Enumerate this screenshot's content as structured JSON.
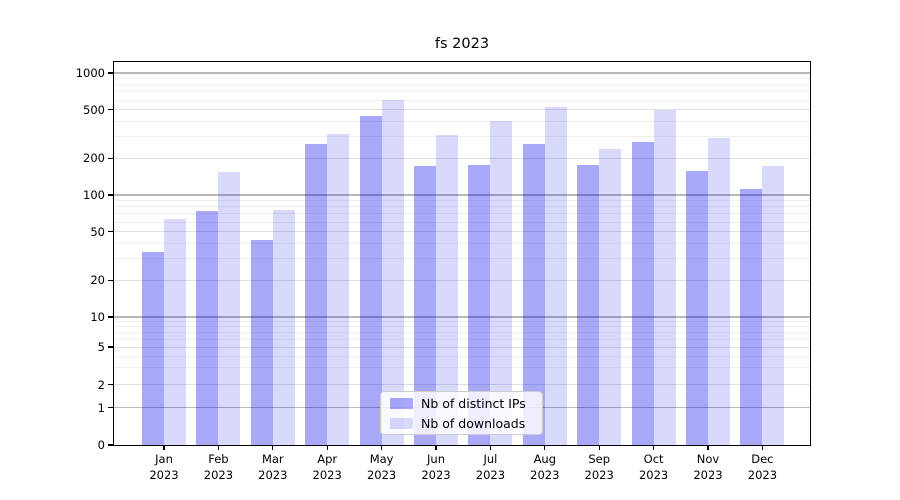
{
  "figure": {
    "background": "#ffffff"
  },
  "chart_data": {
    "type": "bar",
    "title": "fs 2023",
    "categories": [
      {
        "month": "Jan",
        "year": "2023"
      },
      {
        "month": "Feb",
        "year": "2023"
      },
      {
        "month": "Mar",
        "year": "2023"
      },
      {
        "month": "Apr",
        "year": "2023"
      },
      {
        "month": "May",
        "year": "2023"
      },
      {
        "month": "Jun",
        "year": "2023"
      },
      {
        "month": "Jul",
        "year": "2023"
      },
      {
        "month": "Aug",
        "year": "2023"
      },
      {
        "month": "Sep",
        "year": "2023"
      },
      {
        "month": "Oct",
        "year": "2023"
      },
      {
        "month": "Nov",
        "year": "2023"
      },
      {
        "month": "Dec",
        "year": "2023"
      }
    ],
    "series": [
      {
        "name": "Nb of distinct IPs",
        "fill": "rgba(0,0,238,0.34)",
        "approx_hex": "#A8A8F9",
        "values": [
          34,
          74,
          43,
          262,
          442,
          172,
          175,
          263,
          176,
          272,
          157,
          113
        ]
      },
      {
        "name": "Nb of downloads",
        "fill": "rgba(0,0,238,0.15)",
        "approx_hex": "#D8D8FC",
        "values": [
          64,
          153,
          75,
          316,
          600,
          310,
          402,
          527,
          240,
          497,
          294,
          174
        ]
      }
    ],
    "y_axis": {
      "scale": "log (compressed linear segment near 0)",
      "ticks": [
        1000,
        500,
        200,
        100,
        50,
        20,
        10,
        5,
        2,
        1,
        0
      ],
      "range": [
        0,
        1000
      ],
      "grid": true
    },
    "x_axis": {
      "grid": false
    },
    "legend": {
      "position": "lower center"
    },
    "grid_colors": {
      "major": "#b8b8b8",
      "minor_labeled": "#e0e0e0",
      "minor_unlabeled": "#efefef"
    }
  }
}
